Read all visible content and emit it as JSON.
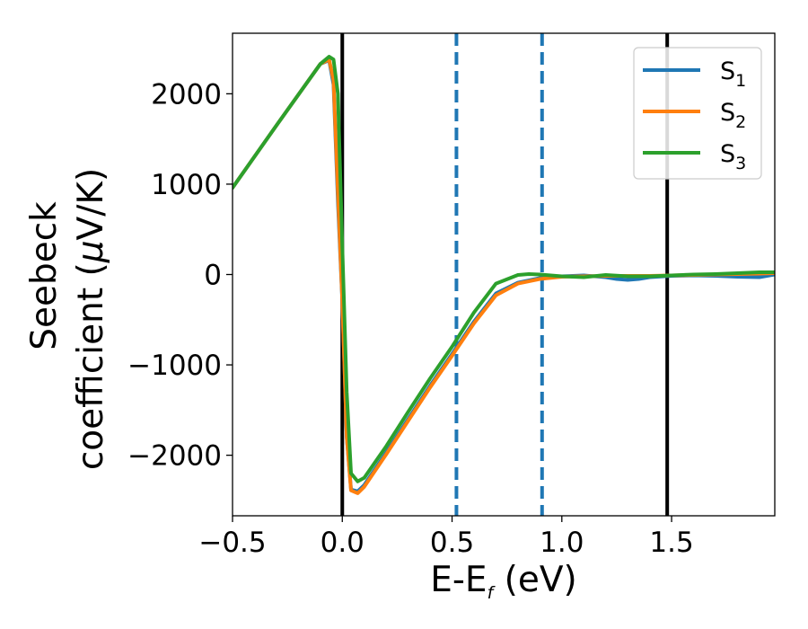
{
  "chart_data": {
    "type": "line",
    "xlabel": "E-E",
    "xlabel_sub": "f",
    "xlabel_unit": " (eV)",
    "ylabel_line1": "Seebeck",
    "ylabel_line2": "coefficient  (",
    "ylabel_mu": "μ",
    "ylabel_unit": "V/K)",
    "xlim": [
      -0.5,
      1.97
    ],
    "ylim": [
      -2670,
      2670
    ],
    "x_ticks": [
      -0.5,
      0.0,
      0.5,
      1.0,
      1.5
    ],
    "x_tick_labels": [
      "−0.5",
      "0.0",
      "0.5",
      "1.0",
      "1.5"
    ],
    "y_ticks": [
      -2000,
      -1000,
      0,
      1000,
      2000
    ],
    "y_tick_labels": [
      "−2000",
      "−1000",
      "0",
      "1000",
      "2000"
    ],
    "grid": false,
    "legend_position": "top-right",
    "vlines": [
      {
        "x": 0.0,
        "color": "#000000",
        "style": "solid"
      },
      {
        "x": 1.48,
        "color": "#000000",
        "style": "solid"
      },
      {
        "x": 0.52,
        "color": "#1f77b4",
        "style": "dashed"
      },
      {
        "x": 0.91,
        "color": "#1f77b4",
        "style": "dashed"
      }
    ],
    "series": [
      {
        "name": "S",
        "name_sub": "1",
        "color": "#1f77b4",
        "x": [
          -0.5,
          -0.3,
          -0.1,
          -0.06,
          -0.04,
          -0.02,
          0.0,
          0.02,
          0.04,
          0.07,
          0.1,
          0.2,
          0.3,
          0.4,
          0.5,
          0.6,
          0.7,
          0.8,
          0.9,
          1.0,
          1.1,
          1.2,
          1.25,
          1.3,
          1.35,
          1.4,
          1.5,
          1.6,
          1.7,
          1.8,
          1.9,
          1.97
        ],
        "y": [
          960,
          1650,
          2330,
          2370,
          2100,
          800,
          -300,
          -1800,
          -2380,
          -2400,
          -2330,
          -1970,
          -1600,
          -1230,
          -880,
          -520,
          -210,
          -90,
          -40,
          -20,
          -10,
          -30,
          -50,
          -60,
          -50,
          -30,
          -15,
          -10,
          -15,
          -25,
          -30,
          0
        ]
      },
      {
        "name": "S",
        "name_sub": "2",
        "color": "#ff7f0e",
        "x": [
          -0.5,
          -0.3,
          -0.1,
          -0.06,
          -0.04,
          -0.02,
          0.0,
          0.02,
          0.04,
          0.07,
          0.1,
          0.2,
          0.3,
          0.4,
          0.5,
          0.6,
          0.7,
          0.8,
          0.9,
          1.0,
          1.1,
          1.2,
          1.3,
          1.4,
          1.5,
          1.6,
          1.7,
          1.8,
          1.9,
          1.97
        ],
        "y": [
          960,
          1650,
          2330,
          2380,
          2150,
          900,
          -300,
          -1800,
          -2390,
          -2420,
          -2350,
          -1990,
          -1620,
          -1250,
          -900,
          -540,
          -230,
          -100,
          -50,
          -25,
          -20,
          -15,
          -15,
          -15,
          -10,
          -5,
          0,
          5,
          10,
          15
        ]
      },
      {
        "name": "S",
        "name_sub": "3",
        "color": "#2ca02c",
        "x": [
          -0.5,
          -0.3,
          -0.1,
          -0.06,
          -0.04,
          -0.02,
          0.0,
          0.02,
          0.04,
          0.07,
          0.1,
          0.2,
          0.3,
          0.4,
          0.5,
          0.6,
          0.7,
          0.8,
          0.85,
          0.9,
          1.0,
          1.1,
          1.2,
          1.3,
          1.4,
          1.5,
          1.6,
          1.7,
          1.8,
          1.9,
          1.97
        ],
        "y": [
          960,
          1650,
          2330,
          2410,
          2380,
          2000,
          300,
          -1300,
          -2200,
          -2290,
          -2250,
          -1900,
          -1520,
          -1150,
          -800,
          -420,
          -100,
          -5,
          5,
          0,
          -20,
          -30,
          -5,
          -20,
          -20,
          -10,
          0,
          5,
          15,
          25,
          25
        ]
      }
    ]
  }
}
